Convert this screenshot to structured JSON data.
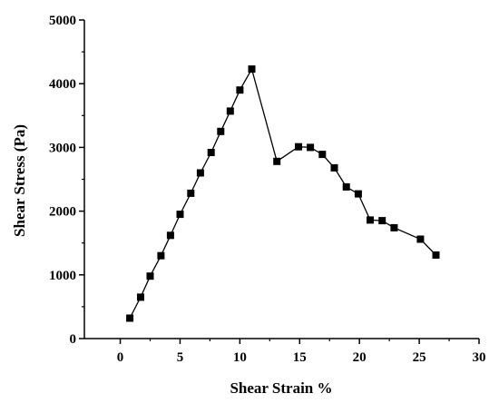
{
  "chart_data": {
    "type": "line",
    "title": "",
    "xlabel": "Shear Strain %",
    "ylabel": "Shear Stress (Pa)",
    "xlim": [
      -3,
      30
    ],
    "ylim": [
      0,
      5000
    ],
    "xticks": [
      0,
      5,
      10,
      15,
      20,
      25,
      30
    ],
    "yticks": [
      0,
      1000,
      2000,
      3000,
      4000,
      5000
    ],
    "grid": false,
    "legend": "none",
    "marker": "square",
    "color": "#000000",
    "series": [
      {
        "x": [
          0.8,
          1.7,
          2.5,
          3.4,
          4.2,
          5.0,
          5.9,
          6.7,
          7.6,
          8.4,
          9.2,
          10.0,
          11.0,
          13.1,
          14.9,
          15.9,
          16.9,
          17.9,
          18.9,
          19.9,
          20.9,
          21.9,
          22.9,
          25.1,
          26.4
        ],
        "y": [
          320,
          650,
          980,
          1300,
          1620,
          1950,
          2280,
          2600,
          2920,
          3250,
          3570,
          3900,
          4230,
          2780,
          3010,
          3000,
          2890,
          2680,
          2380,
          2270,
          1860,
          1850,
          1740,
          1560,
          1310
        ]
      }
    ]
  }
}
